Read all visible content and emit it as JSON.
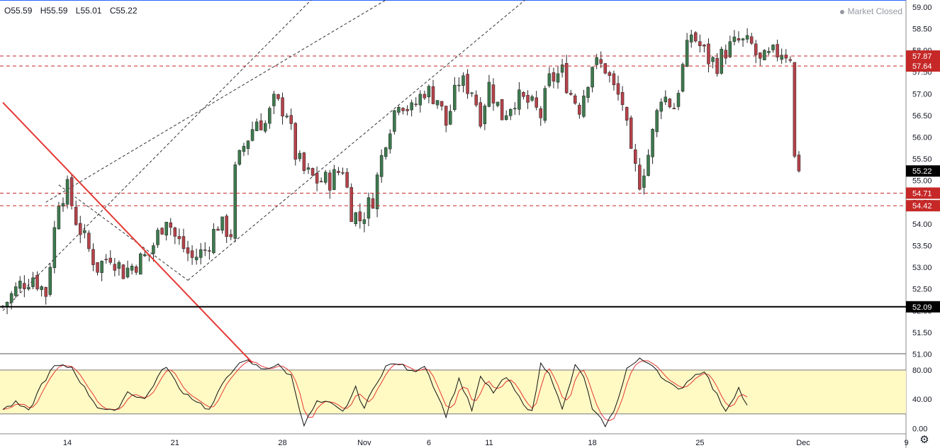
{
  "header": {
    "open": "O55.59",
    "high": "H55.59",
    "low": "L55.01",
    "close": "C55.22",
    "market_status": "Market Closed"
  },
  "icons": {
    "status": "status-dot-icon",
    "settings": "gear-icon"
  },
  "colors": {
    "up_candle": "#3d7a4e",
    "down_candle": "#b5424a",
    "trendline": "#e53935",
    "level_dash": "#c62828",
    "channel": "#333333",
    "stoch_band": "#fff9c4",
    "k_line": "#111111",
    "d_line": "#e53935"
  },
  "chart_data": [
    {
      "type": "candlestick",
      "ylim": [
        51.0,
        59.0
      ],
      "y_ticks": [
        "51.00",
        "51.50",
        "52.00",
        "52.50",
        "53.00",
        "53.50",
        "54.00",
        "54.50",
        "55.00",
        "55.50",
        "56.00",
        "56.50",
        "57.00",
        "57.50",
        "58.00",
        "58.50",
        "59.00"
      ],
      "x_ticks": [
        {
          "label": "14",
          "i": 15
        },
        {
          "label": "21",
          "i": 40
        },
        {
          "label": "28",
          "i": 65
        },
        {
          "label": "Nov",
          "i": 84
        },
        {
          "label": "6",
          "i": 99
        },
        {
          "label": "11",
          "i": 113
        },
        {
          "label": "18",
          "i": 137
        },
        {
          "label": "25",
          "i": 162
        },
        {
          "label": "Dec",
          "i": 186
        },
        {
          "label": "9",
          "i": 210
        }
      ],
      "candles_count": 186,
      "anchors": [
        [
          0,
          52.1
        ],
        [
          4,
          52.6
        ],
        [
          7,
          52.8
        ],
        [
          10,
          52.4
        ],
        [
          13,
          54.6
        ],
        [
          15,
          54.8
        ],
        [
          17,
          54.1
        ],
        [
          20,
          53.4
        ],
        [
          22,
          53.0
        ],
        [
          25,
          53.3
        ],
        [
          28,
          52.9
        ],
        [
          31,
          53.1
        ],
        [
          34,
          53.3
        ],
        [
          38,
          54.2
        ],
        [
          40,
          53.7
        ],
        [
          44,
          53.2
        ],
        [
          47,
          53.4
        ],
        [
          50,
          54.0
        ],
        [
          53,
          53.8
        ],
        [
          54,
          55.2
        ],
        [
          56,
          55.8
        ],
        [
          59,
          56.4
        ],
        [
          61,
          56.3
        ],
        [
          63,
          56.8
        ],
        [
          66,
          56.6
        ],
        [
          68,
          55.6
        ],
        [
          70,
          55.2
        ],
        [
          73,
          55.0
        ],
        [
          76,
          55.0
        ],
        [
          79,
          55.3
        ],
        [
          81,
          54.3
        ],
        [
          83,
          54.1
        ],
        [
          86,
          54.6
        ],
        [
          89,
          56.0
        ],
        [
          92,
          56.9
        ],
        [
          95,
          56.6
        ],
        [
          98,
          57.1
        ],
        [
          101,
          56.9
        ],
        [
          103,
          56.3
        ],
        [
          106,
          57.3
        ],
        [
          109,
          57.1
        ],
        [
          111,
          56.5
        ],
        [
          113,
          57.2
        ],
        [
          116,
          56.5
        ],
        [
          119,
          56.9
        ],
        [
          122,
          56.8
        ],
        [
          125,
          56.5
        ],
        [
          127,
          57.3
        ],
        [
          130,
          57.5
        ],
        [
          132,
          57.0
        ],
        [
          134,
          56.7
        ],
        [
          137,
          57.7
        ],
        [
          140,
          57.6
        ],
        [
          142,
          57.1
        ],
        [
          144,
          56.8
        ],
        [
          146,
          55.5
        ],
        [
          148,
          55.0
        ],
        [
          150,
          55.6
        ],
        [
          153,
          57.0
        ],
        [
          156,
          56.7
        ],
        [
          158,
          57.6
        ],
        [
          160,
          58.4
        ],
        [
          162,
          58.1
        ],
        [
          164,
          57.8
        ],
        [
          166,
          57.7
        ],
        [
          168,
          58.0
        ],
        [
          171,
          58.2
        ],
        [
          174,
          58.1
        ],
        [
          176,
          57.7
        ],
        [
          179,
          57.9
        ],
        [
          181,
          58.0
        ],
        [
          183,
          57.9
        ],
        [
          184,
          55.5
        ],
        [
          185,
          55.22
        ]
      ],
      "levels": [
        {
          "value": 57.87,
          "label": "57.87",
          "style": "dashed-red"
        },
        {
          "value": 57.64,
          "label": "57.64",
          "style": "dashed-red"
        },
        {
          "value": 54.71,
          "label": "54.71",
          "style": "dashed-red"
        },
        {
          "value": 54.42,
          "label": "54.42",
          "style": "dashed-red"
        },
        {
          "value": 52.09,
          "label": "52.09",
          "style": "solid-black"
        }
      ],
      "last_price": {
        "value": 55.22,
        "label": "55.22"
      },
      "trendline": {
        "from": [
          0,
          56.8
        ],
        "to": [
          58,
          50.8
        ]
      },
      "channel_lines": [
        {
          "from": [
            0,
            52.0
          ],
          "to": [
            78,
            59.8
          ]
        },
        {
          "from": [
            10,
            54.5
          ],
          "to": [
            110,
            60.4
          ]
        },
        {
          "from": [
            43,
            52.7
          ],
          "to": [
            140,
            60.7
          ]
        }
      ],
      "channel_connectors": [
        {
          "from": [
            13,
            54.9
          ],
          "to": [
            43,
            52.7
          ]
        }
      ]
    },
    {
      "type": "line",
      "name_k": "",
      "name_d": "",
      "ylim": [
        -5,
        103
      ],
      "y_ticks": [
        "0.00",
        "40.00",
        "80.00"
      ],
      "band": [
        20,
        80
      ],
      "anchors": [
        [
          0,
          26
        ],
        [
          3,
          35
        ],
        [
          6,
          23
        ],
        [
          9,
          60
        ],
        [
          12,
          85
        ],
        [
          16,
          84
        ],
        [
          19,
          55
        ],
        [
          22,
          30
        ],
        [
          26,
          22
        ],
        [
          29,
          50
        ],
        [
          33,
          40
        ],
        [
          36,
          70
        ],
        [
          38,
          86
        ],
        [
          41,
          54
        ],
        [
          44,
          42
        ],
        [
          48,
          25
        ],
        [
          52,
          70
        ],
        [
          54,
          85
        ],
        [
          57,
          92
        ],
        [
          60,
          82
        ],
        [
          64,
          86
        ],
        [
          67,
          72
        ],
        [
          70,
          5
        ],
        [
          73,
          36
        ],
        [
          76,
          34
        ],
        [
          79,
          22
        ],
        [
          82,
          55
        ],
        [
          84,
          28
        ],
        [
          87,
          65
        ],
        [
          89,
          85
        ],
        [
          92,
          89
        ],
        [
          95,
          77
        ],
        [
          98,
          87
        ],
        [
          100,
          60
        ],
        [
          103,
          18
        ],
        [
          106,
          68
        ],
        [
          109,
          25
        ],
        [
          111,
          69
        ],
        [
          114,
          50
        ],
        [
          117,
          70
        ],
        [
          120,
          42
        ],
        [
          123,
          22
        ],
        [
          125,
          88
        ],
        [
          127,
          78
        ],
        [
          130,
          25
        ],
        [
          133,
          85
        ],
        [
          135,
          72
        ],
        [
          137,
          25
        ],
        [
          140,
          5
        ],
        [
          142,
          22
        ],
        [
          145,
          82
        ],
        [
          148,
          94
        ],
        [
          151,
          88
        ],
        [
          154,
          65
        ],
        [
          157,
          52
        ],
        [
          160,
          70
        ],
        [
          163,
          80
        ],
        [
          165,
          55
        ],
        [
          168,
          25
        ],
        [
          171,
          55
        ],
        [
          173,
          30
        ]
      ]
    }
  ]
}
